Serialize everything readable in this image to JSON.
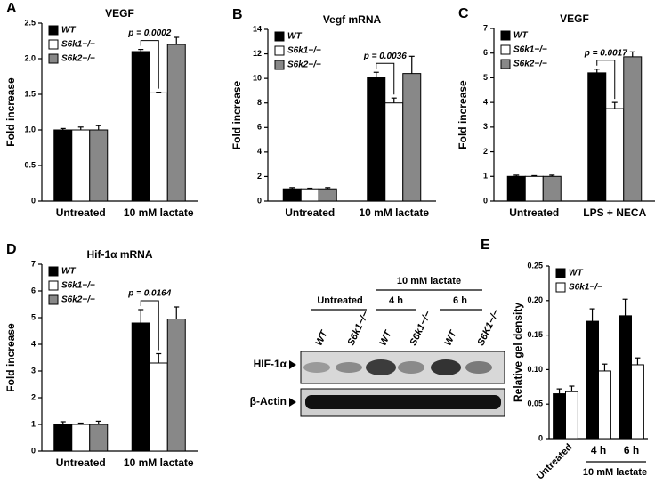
{
  "chart_data": [
    {
      "type": "bar",
      "panel": "A",
      "title": "VEGF",
      "y_label": "Fold increase",
      "categories": [
        "Untreated",
        "10 mM lactate"
      ],
      "series": [
        {
          "name": "WT",
          "color": "#000000",
          "values": [
            1.0,
            2.1
          ],
          "errors": [
            0.02,
            0.03
          ]
        },
        {
          "name": "S6k1−/−",
          "color": "#ffffff",
          "values": [
            1.0,
            1.52
          ],
          "errors": [
            0.04,
            0.01
          ]
        },
        {
          "name": "S6k2−/−",
          "color": "#888888",
          "values": [
            1.0,
            2.2
          ],
          "errors": [
            0.06,
            0.1
          ]
        }
      ],
      "ylim": [
        0,
        2.5
      ],
      "yticks": [
        0,
        0.5,
        {
          "value": 1,
          "label": "1.0"
        },
        1.5,
        {
          "value": 2,
          "label": "2.0"
        },
        2.5
      ],
      "legend": "upper left",
      "annotation": "p = 0.0002"
    },
    {
      "type": "bar",
      "panel": "B",
      "title": "Vegf mRNA",
      "y_label": "Fold increase",
      "categories": [
        "Untreated",
        "10 mM lactate"
      ],
      "series": [
        {
          "name": "WT",
          "color": "#000000",
          "values": [
            1.0,
            10.1
          ],
          "errors": [
            0.1,
            0.4
          ]
        },
        {
          "name": "S6k1−/−",
          "color": "#ffffff",
          "values": [
            1.0,
            8.0
          ],
          "errors": [
            0.05,
            0.4
          ]
        },
        {
          "name": "S6k2−/−",
          "color": "#888888",
          "values": [
            1.0,
            10.4
          ],
          "errors": [
            0.1,
            1.4
          ]
        }
      ],
      "ylim": [
        0,
        14
      ],
      "yticks": [
        0,
        2,
        4,
        6,
        8,
        10,
        12,
        14
      ],
      "legend": "upper left",
      "annotation": "p = 0.0036"
    },
    {
      "type": "bar",
      "panel": "C",
      "title": "VEGF",
      "y_label": "Fold increase",
      "categories": [
        "Untreated",
        "LPS + NECA"
      ],
      "series": [
        {
          "name": "WT",
          "color": "#000000",
          "values": [
            1.0,
            5.2
          ],
          "errors": [
            0.05,
            0.15
          ]
        },
        {
          "name": "S6k1−/−",
          "color": "#ffffff",
          "values": [
            1.0,
            3.75
          ],
          "errors": [
            0.03,
            0.25
          ]
        },
        {
          "name": "S6k2−/−",
          "color": "#888888",
          "values": [
            1.0,
            5.85
          ],
          "errors": [
            0.05,
            0.2
          ]
        }
      ],
      "ylim": [
        0,
        7
      ],
      "yticks": [
        0,
        1,
        2,
        3,
        4,
        5,
        6,
        7
      ],
      "legend": "upper left",
      "annotation": "p = 0.0017"
    },
    {
      "type": "bar",
      "panel": "D",
      "title": "Hif-1α mRNA",
      "y_label": "Fold increase",
      "categories": [
        "Untreated",
        "10 mM lactate"
      ],
      "series": [
        {
          "name": "WT",
          "color": "#000000",
          "values": [
            1.0,
            4.8
          ],
          "errors": [
            0.1,
            0.5
          ]
        },
        {
          "name": "S6k1−/−",
          "color": "#ffffff",
          "values": [
            1.0,
            3.3
          ],
          "errors": [
            0.05,
            0.35
          ]
        },
        {
          "name": "S6k2−/−",
          "color": "#888888",
          "values": [
            1.0,
            4.95
          ],
          "errors": [
            0.12,
            0.45
          ]
        }
      ],
      "ylim": [
        0,
        7
      ],
      "yticks": [
        0,
        1,
        2,
        3,
        4,
        5,
        6,
        7
      ],
      "legend": "upper left",
      "annotation": "p = 0.0164"
    },
    {
      "type": "bar",
      "y_label": "Relative gel density",
      "categories": [
        "Untreated",
        "4 h",
        "6 h"
      ],
      "x_group_label": "10 mM lactate",
      "series": [
        {
          "name": "WT",
          "color": "#000000",
          "values": [
            0.065,
            0.17,
            0.178
          ],
          "errors": [
            0.007,
            0.018,
            0.024
          ]
        },
        {
          "name": "S6k1−/−",
          "color": "#ffffff",
          "values": [
            0.068,
            0.098,
            0.107
          ],
          "errors": [
            0.008,
            0.01,
            0.01
          ]
        }
      ],
      "ylim": [
        0,
        0.25
      ],
      "yticks": [
        0,
        0.05,
        {
          "value": 0.1,
          "label": "0.10"
        },
        0.15,
        {
          "value": 0.2,
          "label": "0.20"
        },
        0.25
      ],
      "legend": "upper left"
    }
  ],
  "blot": {
    "panel": "E",
    "group_label": "10 mM lactate",
    "conditions": [
      "Untreated",
      "4 h",
      "6 h"
    ],
    "lanes": [
      "WT",
      "S6k1−/−",
      "WT",
      "S6k1−/−",
      "WT",
      "S6K1−/−"
    ],
    "rows": [
      "HIF-1α",
      "β-Actin"
    ]
  }
}
